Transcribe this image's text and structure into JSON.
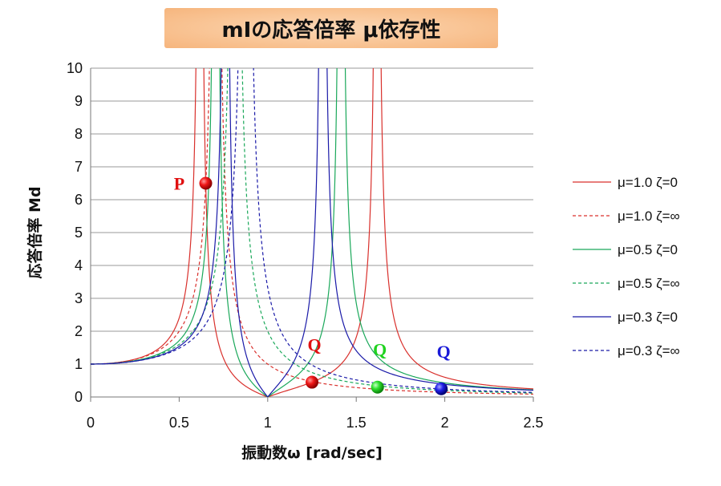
{
  "title": {
    "main": "mIの応答倍率 μ依存性"
  },
  "chart_data": {
    "type": "line",
    "xlabel": "振動数ω [rad/sec]",
    "ylabel": "応答倍率 Md",
    "xlim": [
      0,
      2.5
    ],
    "ylim": [
      0,
      10
    ],
    "x_ticks": [
      "0",
      "0.5",
      "1",
      "1.5",
      "2",
      "2.5"
    ],
    "y_ticks": [
      "0",
      "1",
      "2",
      "3",
      "4",
      "5",
      "6",
      "7",
      "8",
      "9",
      "10"
    ],
    "grid": "horizontal",
    "legend_position": "right",
    "series": [
      {
        "name": "μ=1.0 ζ=0",
        "mu": 1.0,
        "zeta": "0",
        "color": "#d9302c",
        "dash": "solid"
      },
      {
        "name": "μ=1.0 ζ=∞",
        "mu": 1.0,
        "zeta": "∞",
        "color": "#d9302c",
        "dash": "dashed"
      },
      {
        "name": "μ=0.5 ζ=0",
        "mu": 0.5,
        "zeta": "0",
        "color": "#1aa85a",
        "dash": "solid"
      },
      {
        "name": "μ=0.5 ζ=∞",
        "mu": 0.5,
        "zeta": "∞",
        "color": "#1aa85a",
        "dash": "dashed"
      },
      {
        "name": "μ=0.3 ζ=0",
        "mu": 0.3,
        "zeta": "0",
        "color": "#1a1aa8",
        "dash": "solid"
      },
      {
        "name": "μ=0.3 ζ=∞",
        "mu": 0.3,
        "zeta": "∞",
        "color": "#1a1aa8",
        "dash": "dashed"
      }
    ],
    "markers": [
      {
        "label": "P",
        "x": 0.65,
        "y": 6.5,
        "color": "#e01010"
      },
      {
        "label": "Q",
        "x": 1.25,
        "y": 0.45,
        "color": "#e01010"
      },
      {
        "label": "Q",
        "x": 1.62,
        "y": 0.3,
        "color": "#1fd21f"
      },
      {
        "label": "Q",
        "x": 1.98,
        "y": 0.25,
        "color": "#1a1ad8"
      }
    ]
  }
}
